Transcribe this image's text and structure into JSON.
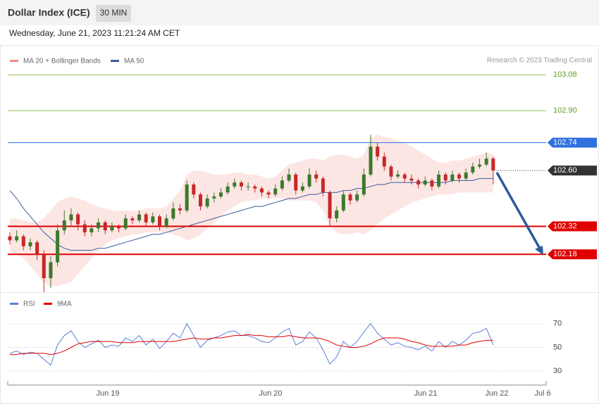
{
  "header": {
    "title": "Dollar Index (ICE)",
    "interval": "30 MIN",
    "timestamp": "Wednesday, June 21, 2023 11:21:24 AM CET"
  },
  "x_axis": {
    "labels": [
      "Jun 19",
      "Jun 20",
      "Jun 21",
      "Jun 22",
      "Jul 6"
    ]
  },
  "chart_data": [
    {
      "type": "candlestick",
      "credit": "Research © 2023 Trading Central",
      "up_color": "#3d7a2a",
      "down_color": "#c62828",
      "ylim": [
        101.99,
        103.12
      ],
      "levels": [
        {
          "value": 103.08,
          "label": "103.08",
          "color": "#8bc34a",
          "style": "solid",
          "tagged": false
        },
        {
          "value": 102.9,
          "label": "102.90",
          "color": "#8bc34a",
          "style": "solid",
          "tagged": false
        },
        {
          "value": 102.74,
          "label": "102.74",
          "color": "#2f6fe0",
          "style": "solid",
          "tagged": true
        },
        {
          "value": 102.6,
          "label": "102.60",
          "color": "#333333",
          "style": "dotted",
          "tagged": true
        },
        {
          "value": 102.32,
          "label": "102.32",
          "color": "#e00000",
          "style": "thick",
          "tagged": true
        },
        {
          "value": 102.18,
          "label": "102.18",
          "color": "#e00000",
          "style": "thick",
          "tagged": true
        }
      ],
      "series": [
        {
          "name": "MA 20 + Bollinger Bands",
          "color": "#f28b82",
          "upper": [
            102.36,
            102.36,
            102.35,
            102.34,
            102.34,
            102.36,
            102.4,
            102.44,
            102.46,
            102.47,
            102.46,
            102.45,
            102.43,
            102.42,
            102.41,
            102.4,
            102.4,
            102.4,
            102.4,
            102.4,
            102.41,
            102.41,
            102.41,
            102.42,
            102.46,
            102.5,
            102.58,
            102.6,
            102.6,
            102.59,
            102.58,
            102.58,
            102.58,
            102.59,
            102.59,
            102.58,
            102.58,
            102.57,
            102.56,
            102.57,
            102.6,
            102.63,
            102.64,
            102.65,
            102.66,
            102.66,
            102.65,
            102.67,
            102.68,
            102.68,
            102.67,
            102.66,
            102.68,
            102.76,
            102.78,
            102.77,
            102.76,
            102.75,
            102.74,
            102.72,
            102.7,
            102.68,
            102.66,
            102.64,
            102.64,
            102.65,
            102.65,
            102.66,
            102.67,
            102.68,
            102.69,
            102.68
          ],
          "lower": [
            102.2,
            102.18,
            102.16,
            102.12,
            102.08,
            102.04,
            102.02,
            102.02,
            102.03,
            102.04,
            102.08,
            102.12,
            102.16,
            102.2,
            102.23,
            102.25,
            102.26,
            102.27,
            102.28,
            102.28,
            102.29,
            102.29,
            102.29,
            102.29,
            102.28,
            102.27,
            102.25,
            102.26,
            102.28,
            102.31,
            102.34,
            102.37,
            102.4,
            102.42,
            102.44,
            102.45,
            102.45,
            102.46,
            102.46,
            102.46,
            102.46,
            102.45,
            102.45,
            102.45,
            102.45,
            102.44,
            102.4,
            102.32,
            102.29,
            102.28,
            102.28,
            102.29,
            102.28,
            102.3,
            102.33,
            102.36,
            102.38,
            102.4,
            102.42,
            102.44,
            102.45,
            102.46,
            102.47,
            102.48,
            102.48,
            102.48,
            102.49,
            102.49,
            102.49,
            102.49,
            102.49,
            102.49
          ]
        },
        {
          "name": "MA 50",
          "color": "#3a5e9c",
          "values": [
            102.5,
            102.46,
            102.41,
            102.37,
            102.33,
            102.29,
            102.26,
            102.23,
            102.21,
            102.2,
            102.2,
            102.2,
            102.2,
            102.21,
            102.21,
            102.22,
            102.23,
            102.24,
            102.25,
            102.26,
            102.27,
            102.28,
            102.28,
            102.29,
            102.3,
            102.31,
            102.32,
            102.33,
            102.34,
            102.35,
            102.36,
            102.37,
            102.38,
            102.39,
            102.4,
            102.41,
            102.42,
            102.42,
            102.43,
            102.44,
            102.45,
            102.46,
            102.46,
            102.47,
            102.48,
            102.48,
            102.49,
            102.49,
            102.49,
            102.5,
            102.5,
            102.51,
            102.51,
            102.52,
            102.53,
            102.53,
            102.54,
            102.54,
            102.54,
            102.54,
            102.54,
            102.54,
            102.54,
            102.54,
            102.54,
            102.55,
            102.55,
            102.55,
            102.55,
            102.56,
            102.56,
            102.56
          ]
        }
      ],
      "ohlc": [
        [
          102.27,
          102.29,
          102.23,
          102.25
        ],
        [
          102.25,
          102.3,
          102.24,
          102.27
        ],
        [
          102.27,
          102.28,
          102.2,
          102.22
        ],
        [
          102.22,
          102.26,
          102.2,
          102.24
        ],
        [
          102.24,
          102.25,
          102.15,
          102.18
        ],
        [
          102.18,
          102.2,
          101.99,
          102.06
        ],
        [
          102.06,
          102.17,
          102.01,
          102.14
        ],
        [
          102.14,
          102.33,
          102.12,
          102.3
        ],
        [
          102.3,
          102.4,
          102.28,
          102.35
        ],
        [
          102.35,
          102.41,
          102.32,
          102.38
        ],
        [
          102.38,
          102.39,
          102.3,
          102.33
        ],
        [
          102.33,
          102.35,
          102.27,
          102.29
        ],
        [
          102.29,
          102.33,
          102.27,
          102.31
        ],
        [
          102.31,
          102.36,
          102.29,
          102.34
        ],
        [
          102.34,
          102.35,
          102.28,
          102.3
        ],
        [
          102.3,
          102.34,
          102.29,
          102.32
        ],
        [
          102.32,
          102.33,
          102.29,
          102.31
        ],
        [
          102.31,
          102.38,
          102.3,
          102.36
        ],
        [
          102.36,
          102.37,
          102.33,
          102.35
        ],
        [
          102.35,
          102.4,
          102.34,
          102.38
        ],
        [
          102.38,
          102.39,
          102.32,
          102.34
        ],
        [
          102.34,
          102.39,
          102.33,
          102.37
        ],
        [
          102.37,
          102.38,
          102.3,
          102.32
        ],
        [
          102.32,
          102.38,
          102.31,
          102.36
        ],
        [
          102.36,
          102.44,
          102.35,
          102.41
        ],
        [
          102.41,
          102.43,
          102.38,
          102.4
        ],
        [
          102.4,
          102.55,
          102.39,
          102.53
        ],
        [
          102.53,
          102.54,
          102.46,
          102.48
        ],
        [
          102.48,
          102.49,
          102.4,
          102.42
        ],
        [
          102.42,
          102.48,
          102.41,
          102.46
        ],
        [
          102.46,
          102.49,
          102.44,
          102.47
        ],
        [
          102.47,
          102.51,
          102.46,
          102.49
        ],
        [
          102.49,
          102.54,
          102.48,
          102.52
        ],
        [
          102.52,
          102.56,
          102.51,
          102.54
        ],
        [
          102.54,
          102.55,
          102.5,
          102.52
        ],
        [
          102.52,
          102.54,
          102.5,
          102.52
        ],
        [
          102.52,
          102.53,
          102.49,
          102.51
        ],
        [
          102.51,
          102.52,
          102.47,
          102.49
        ],
        [
          102.49,
          102.5,
          102.46,
          102.48
        ],
        [
          102.48,
          102.53,
          102.47,
          102.51
        ],
        [
          102.51,
          102.57,
          102.5,
          102.55
        ],
        [
          102.55,
          102.61,
          102.54,
          102.58
        ],
        [
          102.58,
          102.59,
          102.48,
          102.5
        ],
        [
          102.5,
          102.54,
          102.49,
          102.52
        ],
        [
          102.52,
          102.61,
          102.51,
          102.58
        ],
        [
          102.58,
          102.6,
          102.54,
          102.56
        ],
        [
          102.56,
          102.57,
          102.47,
          102.49
        ],
        [
          102.49,
          102.5,
          102.32,
          102.36
        ],
        [
          102.36,
          102.42,
          102.34,
          102.4
        ],
        [
          102.4,
          102.5,
          102.39,
          102.48
        ],
        [
          102.48,
          102.49,
          102.43,
          102.45
        ],
        [
          102.45,
          102.5,
          102.44,
          102.48
        ],
        [
          102.48,
          102.61,
          102.47,
          102.58
        ],
        [
          102.58,
          102.78,
          102.57,
          102.72
        ],
        [
          102.72,
          102.74,
          102.65,
          102.67
        ],
        [
          102.67,
          102.69,
          102.6,
          102.62
        ],
        [
          102.62,
          102.63,
          102.55,
          102.57
        ],
        [
          102.57,
          102.6,
          102.56,
          102.58
        ],
        [
          102.58,
          102.59,
          102.54,
          102.56
        ],
        [
          102.56,
          102.58,
          102.53,
          102.55
        ],
        [
          102.55,
          102.56,
          102.51,
          102.53
        ],
        [
          102.53,
          102.57,
          102.52,
          102.55
        ],
        [
          102.55,
          102.56,
          102.5,
          102.52
        ],
        [
          102.52,
          102.6,
          102.51,
          102.58
        ],
        [
          102.58,
          102.59,
          102.53,
          102.55
        ],
        [
          102.55,
          102.6,
          102.54,
          102.58
        ],
        [
          102.58,
          102.59,
          102.54,
          102.56
        ],
        [
          102.56,
          102.61,
          102.55,
          102.59
        ],
        [
          102.59,
          102.64,
          102.58,
          102.62
        ],
        [
          102.62,
          102.66,
          102.61,
          102.63
        ],
        [
          102.63,
          102.69,
          102.62,
          102.66
        ],
        [
          102.66,
          102.67,
          102.53,
          102.6
        ]
      ]
    },
    {
      "type": "line",
      "ylim": [
        20,
        80
      ],
      "yticks": [
        30,
        50,
        70
      ],
      "grid": true,
      "series": [
        {
          "name": "RSI",
          "color": "#5b7fd6",
          "values": [
            45,
            47,
            44,
            46,
            45,
            40,
            35,
            52,
            60,
            64,
            55,
            50,
            53,
            56,
            50,
            52,
            51,
            58,
            55,
            60,
            52,
            57,
            49,
            55,
            62,
            58,
            70,
            60,
            50,
            56,
            58,
            60,
            63,
            64,
            60,
            60,
            58,
            55,
            54,
            58,
            63,
            66,
            52,
            55,
            63,
            58,
            48,
            36,
            42,
            55,
            50,
            55,
            63,
            70,
            62,
            57,
            52,
            54,
            51,
            50,
            48,
            51,
            47,
            55,
            50,
            55,
            52,
            56,
            62,
            63,
            66,
            52
          ]
        },
        {
          "name": "9MA",
          "color": "#e00000",
          "values": [
            44,
            44,
            45,
            45,
            45,
            45,
            44,
            45,
            47,
            50,
            53,
            54,
            55,
            55,
            55,
            55,
            54,
            54,
            54,
            55,
            55,
            55,
            55,
            55,
            55,
            56,
            57,
            58,
            57,
            57,
            58,
            58,
            59,
            60,
            60,
            61,
            60,
            60,
            59,
            59,
            59,
            60,
            59,
            58,
            58,
            58,
            57,
            55,
            52,
            51,
            50,
            50,
            51,
            53,
            56,
            58,
            58,
            58,
            57,
            55,
            54,
            52,
            51,
            51,
            51,
            51,
            52,
            52,
            54,
            55,
            56,
            56
          ]
        }
      ]
    }
  ]
}
